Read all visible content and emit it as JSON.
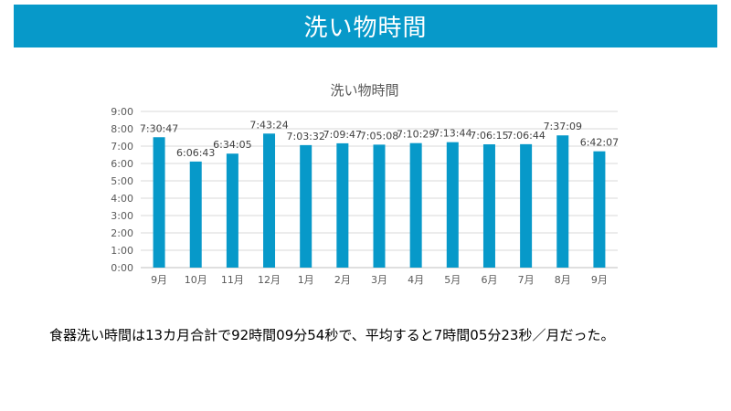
{
  "slide": {
    "banner_title": "洗い物時間",
    "banner_color": "#0799c9",
    "summary": "食器洗い時間は13カ月合計で92時間09分54秒で、平均すると7時間05分23秒／月だった。"
  },
  "chart_data": {
    "type": "bar",
    "title": "洗い物時間",
    "categories": [
      "9月",
      "10月",
      "11月",
      "12月",
      "1月",
      "2月",
      "3月",
      "4月",
      "5月",
      "6月",
      "7月",
      "8月",
      "9月"
    ],
    "values": [
      7.5131,
      6.1119,
      6.5681,
      7.7233,
      7.0589,
      7.1631,
      7.0856,
      7.1747,
      7.2289,
      7.1042,
      7.1122,
      7.6192,
      6.7019
    ],
    "data_labels": [
      "7:30:47",
      "6:06:43",
      "6:34:05",
      "7:43:24",
      "7:03:32",
      "7:09:47",
      "7:05:08",
      "7:10:29",
      "7:13:44",
      "7:06:15",
      "7:06:44",
      "7:37:09",
      "6:42:07"
    ],
    "yticks": [
      "0:00",
      "1:00",
      "2:00",
      "3:00",
      "4:00",
      "5:00",
      "6:00",
      "7:00",
      "8:00",
      "9:00"
    ],
    "ylim": [
      0,
      9
    ],
    "xlabel": "",
    "ylabel": "",
    "grid": true,
    "bar_color": "#0799c9"
  }
}
